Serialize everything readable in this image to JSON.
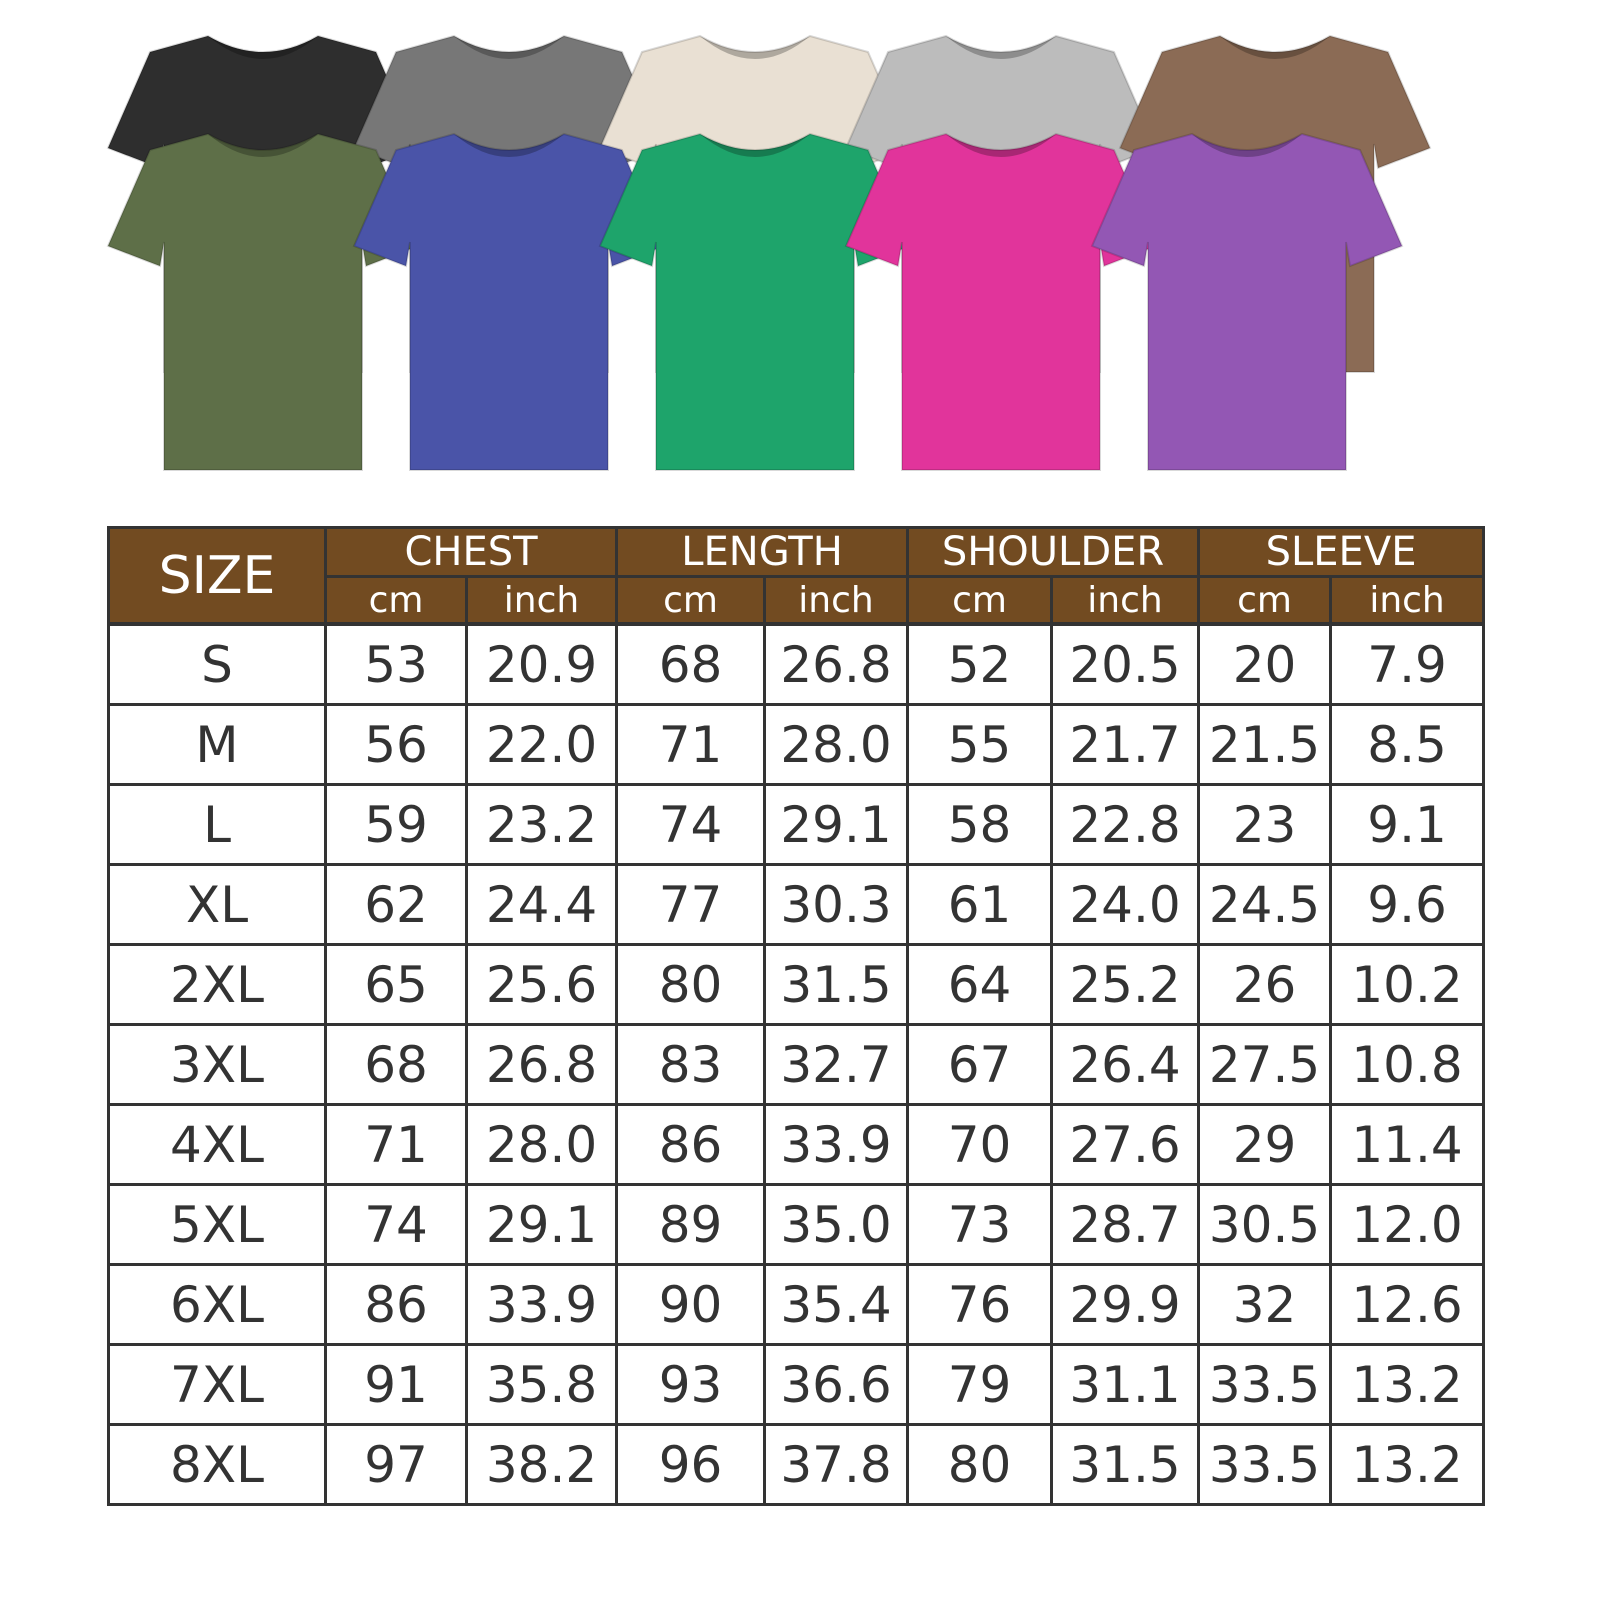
{
  "shirts": {
    "back_row": [
      {
        "color": "#2e2e2e",
        "name": "black"
      },
      {
        "color": "#777777",
        "name": "gray"
      },
      {
        "color": "#e9e0d3",
        "name": "beige"
      },
      {
        "color": "#bcbcbc",
        "name": "light-gray"
      },
      {
        "color": "#8b6b55",
        "name": "brown"
      }
    ],
    "front_row": [
      {
        "color": "#5e6f48",
        "name": "olive"
      },
      {
        "color": "#4a54a8",
        "name": "blue"
      },
      {
        "color": "#1ea46b",
        "name": "green"
      },
      {
        "color": "#e1349b",
        "name": "pink"
      },
      {
        "color": "#9357b4",
        "name": "purple"
      }
    ]
  },
  "table": {
    "header_color": "#724b21",
    "size_label": "SIZE",
    "groups": [
      "CHEST",
      "LENGTH",
      "SHOULDER",
      "SLEEVE"
    ],
    "units": [
      "cm",
      "inch"
    ],
    "rows": [
      [
        "S",
        "53",
        "20.9",
        "68",
        "26.8",
        "52",
        "20.5",
        "20",
        "7.9"
      ],
      [
        "M",
        "56",
        "22.0",
        "71",
        "28.0",
        "55",
        "21.7",
        "21.5",
        "8.5"
      ],
      [
        "L",
        "59",
        "23.2",
        "74",
        "29.1",
        "58",
        "22.8",
        "23",
        "9.1"
      ],
      [
        "XL",
        "62",
        "24.4",
        "77",
        "30.3",
        "61",
        "24.0",
        "24.5",
        "9.6"
      ],
      [
        "2XL",
        "65",
        "25.6",
        "80",
        "31.5",
        "64",
        "25.2",
        "26",
        "10.2"
      ],
      [
        "3XL",
        "68",
        "26.8",
        "83",
        "32.7",
        "67",
        "26.4",
        "27.5",
        "10.8"
      ],
      [
        "4XL",
        "71",
        "28.0",
        "86",
        "33.9",
        "70",
        "27.6",
        "29",
        "11.4"
      ],
      [
        "5XL",
        "74",
        "29.1",
        "89",
        "35.0",
        "73",
        "28.7",
        "30.5",
        "12.0"
      ],
      [
        "6XL",
        "86",
        "33.9",
        "90",
        "35.4",
        "76",
        "29.9",
        "32",
        "12.6"
      ],
      [
        "7XL",
        "91",
        "35.8",
        "93",
        "36.6",
        "79",
        "31.1",
        "33.5",
        "13.2"
      ],
      [
        "8XL",
        "97",
        "38.2",
        "96",
        "37.8",
        "80",
        "31.5",
        "33.5",
        "13.2"
      ]
    ]
  }
}
